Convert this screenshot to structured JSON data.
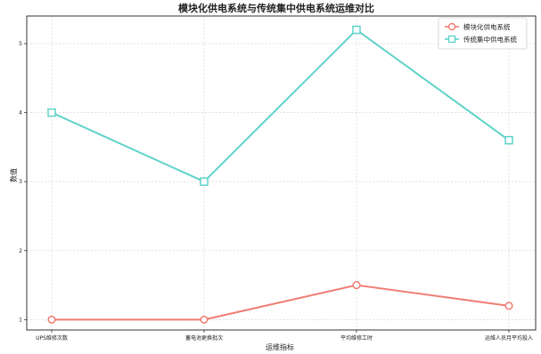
{
  "chart_data": {
    "type": "line",
    "title": "模块化供电系统与传统集中供电系统运维对比",
    "xlabel": "运维指标",
    "ylabel": "数值",
    "categories": [
      "UPS维修次数",
      "蓄电池更换批次",
      "平均维修工时",
      "运维人员月平均投入"
    ],
    "series": [
      {
        "name": "模块化供电系统",
        "values": [
          1.0,
          1.0,
          1.5,
          1.2
        ],
        "color": "#f07c72",
        "marker": "circle"
      },
      {
        "name": "传统集中供电系统",
        "values": [
          4.0,
          3.0,
          5.2,
          3.6
        ],
        "color": "#5fd3c9",
        "marker": "square"
      }
    ],
    "ylim": [
      0.85,
      5.4
    ],
    "yticks": [
      1,
      2,
      3,
      4,
      5
    ],
    "grid": true,
    "legend": "top-right"
  }
}
